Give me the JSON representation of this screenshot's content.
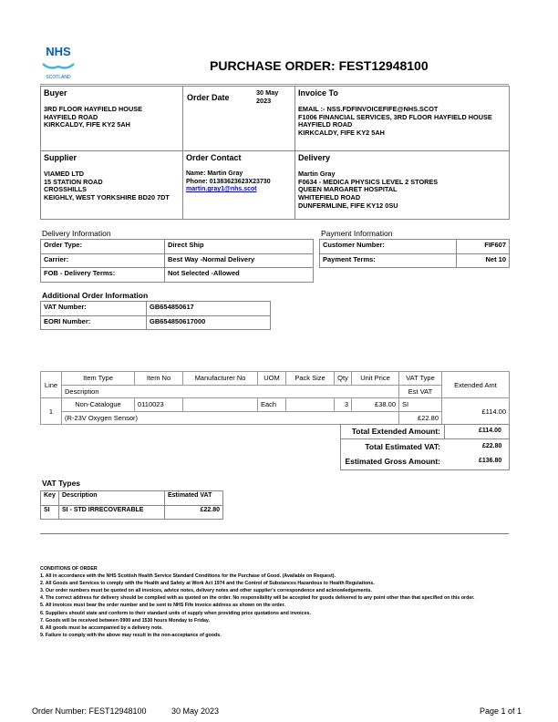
{
  "logo": {
    "text": "NHS",
    "subtext": "SCOTLAND",
    "color": "#005eb8"
  },
  "title": "PURCHASE ORDER: FEST12948100",
  "buyer": {
    "label": "Buyer",
    "lines": [
      "3RD FLOOR HAYFIELD HOUSE",
      "HAYFIELD ROAD",
      "KIRKCALDY, FIFE KY2 5AH"
    ]
  },
  "order_date": {
    "label": "Order Date",
    "value": "30 May 2023"
  },
  "invoice_to": {
    "label": "Invoice To",
    "lines": [
      "EMAIL :- NSS.FDFINVOICEFIFE@NHS.SCOT",
      "F1006 FINANCIAL SERVICES, 3RD FLOOR HAYFIELD HOUSE",
      "HAYFIELD ROAD",
      "KIRKCALDY,  FIFE  KY2 5AH"
    ]
  },
  "supplier": {
    "label": "Supplier",
    "lines": [
      "VIAMED LTD",
      "15 STATION ROAD",
      "CROSSHILLS",
      "KEIGHLY, WEST YORKSHIRE BD20 7DT"
    ]
  },
  "order_contact": {
    "label": "Order Contact",
    "name": "Name: Martin Gray",
    "phone": "Phone: 01383623623X23730",
    "email": "martin.gray1@nhs.scot",
    "link_color": "#0000ee"
  },
  "delivery": {
    "label": "Delivery",
    "lines": [
      "Martin Gray",
      "F0634 - MEDICA PHYSICS LEVEL 2 STORES",
      "QUEEN MARGARET HOSPITAL",
      "WHITEFIELD ROAD",
      "DUNFERMLINE, FIFE KY12 0SU"
    ]
  },
  "delivery_info": {
    "label": "Delivery Information",
    "rows": [
      [
        "Order Type:",
        "Direct Ship"
      ],
      [
        "Carrier:",
        "Best Way  -Normal Delivery"
      ],
      [
        "FOB - Delivery Terms:",
        "Not Selected  -Allowed"
      ]
    ]
  },
  "payment_info": {
    "label": "Payment Information",
    "rows": [
      [
        "Customer Number:",
        "FIF607"
      ],
      [
        "Payment Terms:",
        "Net 10"
      ]
    ]
  },
  "additional_info": {
    "label": "Additional Order Information",
    "rows": [
      [
        "VAT Number:",
        "GB654850617"
      ],
      [
        "EORI Number:",
        "GB654850617000"
      ]
    ]
  },
  "items": {
    "headers": {
      "line": "Line",
      "item_type": "Item Type",
      "item_no": "Item No",
      "manufacturer_no": "Manufacturer No",
      "uom": "UOM",
      "pack_size": "Pack Size",
      "qty": "Qty",
      "unit_price": "Unit Price",
      "vat_type": "VAT Type",
      "extended_amt": "Extended Amt",
      "description": "Description",
      "est_vat": "Est VAT"
    },
    "rows": [
      {
        "line": "1",
        "item_type": "Non-Catalogue",
        "item_no": "0110023",
        "manufacturer_no": "",
        "uom": "Each",
        "pack_size": "",
        "qty": "3",
        "unit_price": "£38.00",
        "vat_type": "SI",
        "extended_amt": "£114.00",
        "description": "(R-23V Oxygen Sensor)",
        "est_vat": "£22.80"
      }
    ]
  },
  "totals": [
    [
      "Total Extended Amount:",
      "£114.00"
    ],
    [
      "Total Estimated VAT:",
      "£22.80"
    ],
    [
      "Estimated Gross Amount:",
      "£136.80"
    ]
  ],
  "vat_types": {
    "label": "VAT Types",
    "headers": [
      "Key",
      "Description",
      "Estimated VAT"
    ],
    "rows": [
      [
        "SI",
        "SI - STD IRRECOVERABLE",
        "£22.80"
      ]
    ]
  },
  "conditions": {
    "title": "CONDITIONS OF ORDER",
    "items": [
      "1. All in accordance with the NHS Scottish Health Service Standard Conditions for the Purchase of Good. (Available on Request).",
      "2. All Goods and Services to comply with the Health and Safety at Work Act 1974 and the Control of Substances Hazardous to Health Regulations.",
      "3. Our order numbers must be quoted on all invoices, advice notes, delivery notes and other supplier's correspondence and acknowledgements.",
      "4. The correct address for delivery should be complied with as quoted on the order. No responsibility will be accepted for goods delivered to any point other than that specified on this order.",
      "5. All invoices must bear the order number and be sent to NHS Fife invoice address as shown on the order.",
      "6. Suppliers should state and conform to their standard units of supply when providing price quotations and invoices.",
      "7. Goods will be received between 0900 and 1530 hours Monday to Friday.",
      "8. All goods must be accompanied by a delivery note.",
      "9. Failure to comply with the above may result in the non-acceptance of goods."
    ]
  },
  "footer": {
    "order_number": "Order Number: FEST12948100",
    "date": "30 May 2023",
    "page": "Page 1 of 1"
  }
}
